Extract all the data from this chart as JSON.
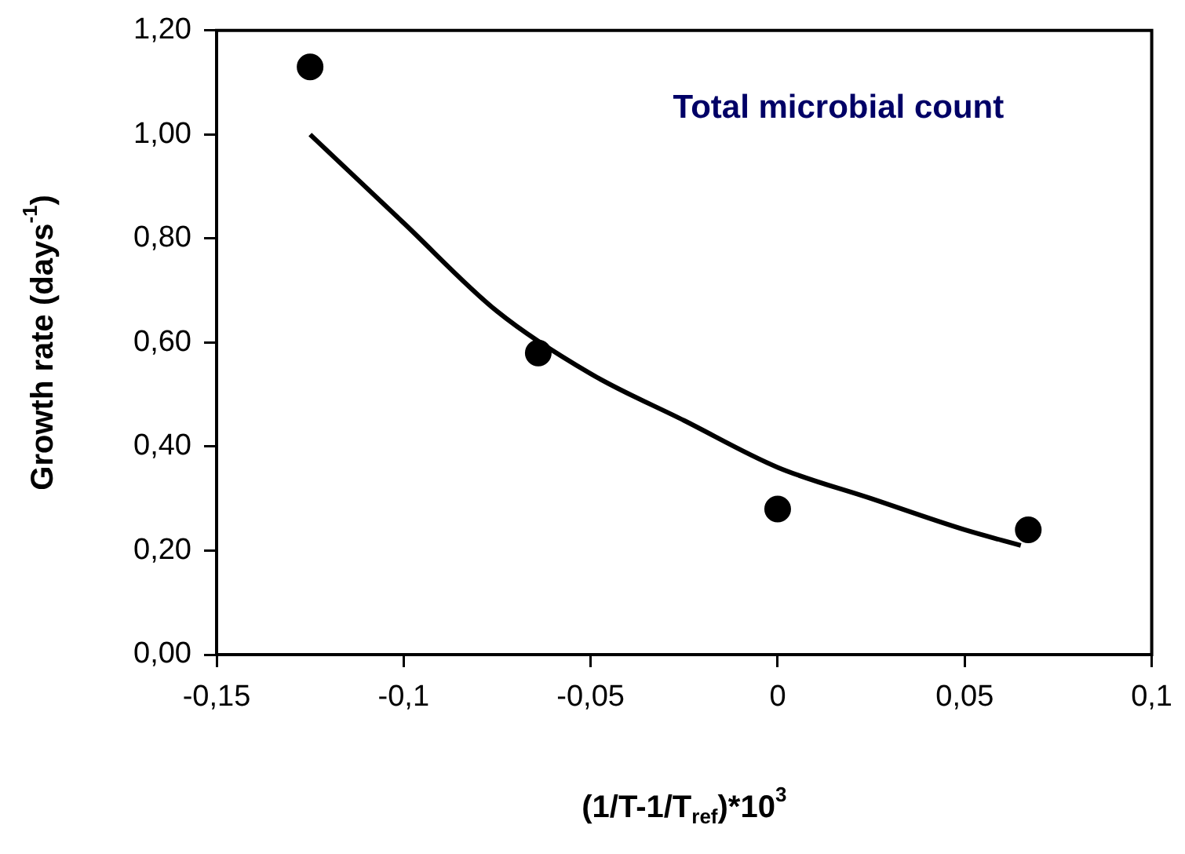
{
  "chart_data": {
    "type": "scatter",
    "xlabel": "(1/T-1/T$_{ref}$)*10$^{3}$",
    "ylabel": "Growth rate (days$^{-1}$)",
    "annotations": [
      "Total microbial count"
    ],
    "xlim": [
      -0.15,
      0.1
    ],
    "xticks": [
      {
        "value": -0.15,
        "label": "-0,15"
      },
      {
        "value": -0.1,
        "label": "-0,1"
      },
      {
        "value": -0.05,
        "label": "-0,05"
      },
      0,
      {
        "value": 0.05,
        "label": "0,05"
      },
      {
        "value": 0.1,
        "label": "0,1"
      }
    ],
    "ylim": [
      0,
      1.2
    ],
    "yticks": [
      {
        "value": 0,
        "label": "0,00"
      },
      {
        "value": 0.2,
        "label": "0,20"
      },
      {
        "value": 0.4,
        "label": "0,40"
      },
      {
        "value": 0.6,
        "label": "0,60"
      },
      {
        "value": 0.8,
        "label": "0,80"
      },
      {
        "value": 1,
        "label": "1,00"
      },
      {
        "value": 1.2,
        "label": "1,20"
      }
    ],
    "grid": false,
    "legend": false,
    "series": [
      {
        "color": "#000000",
        "marker": "circle",
        "x": [
          -0.125,
          -0.064,
          0,
          0.067
        ],
        "values": [
          1.13,
          0.58,
          0.28,
          0.24
        ]
      },
      {
        "type": "line",
        "color": "#000000",
        "marker": "none",
        "line_style": "solid",
        "x": [
          -0.125,
          -0.1,
          -0.075,
          -0.05,
          -0.025,
          0,
          0.025,
          0.05,
          0.065
        ],
        "values": [
          1.0,
          0.83,
          0.66,
          0.54,
          0.45,
          0.36,
          0.3,
          0.24,
          0.21
        ]
      }
    ]
  }
}
